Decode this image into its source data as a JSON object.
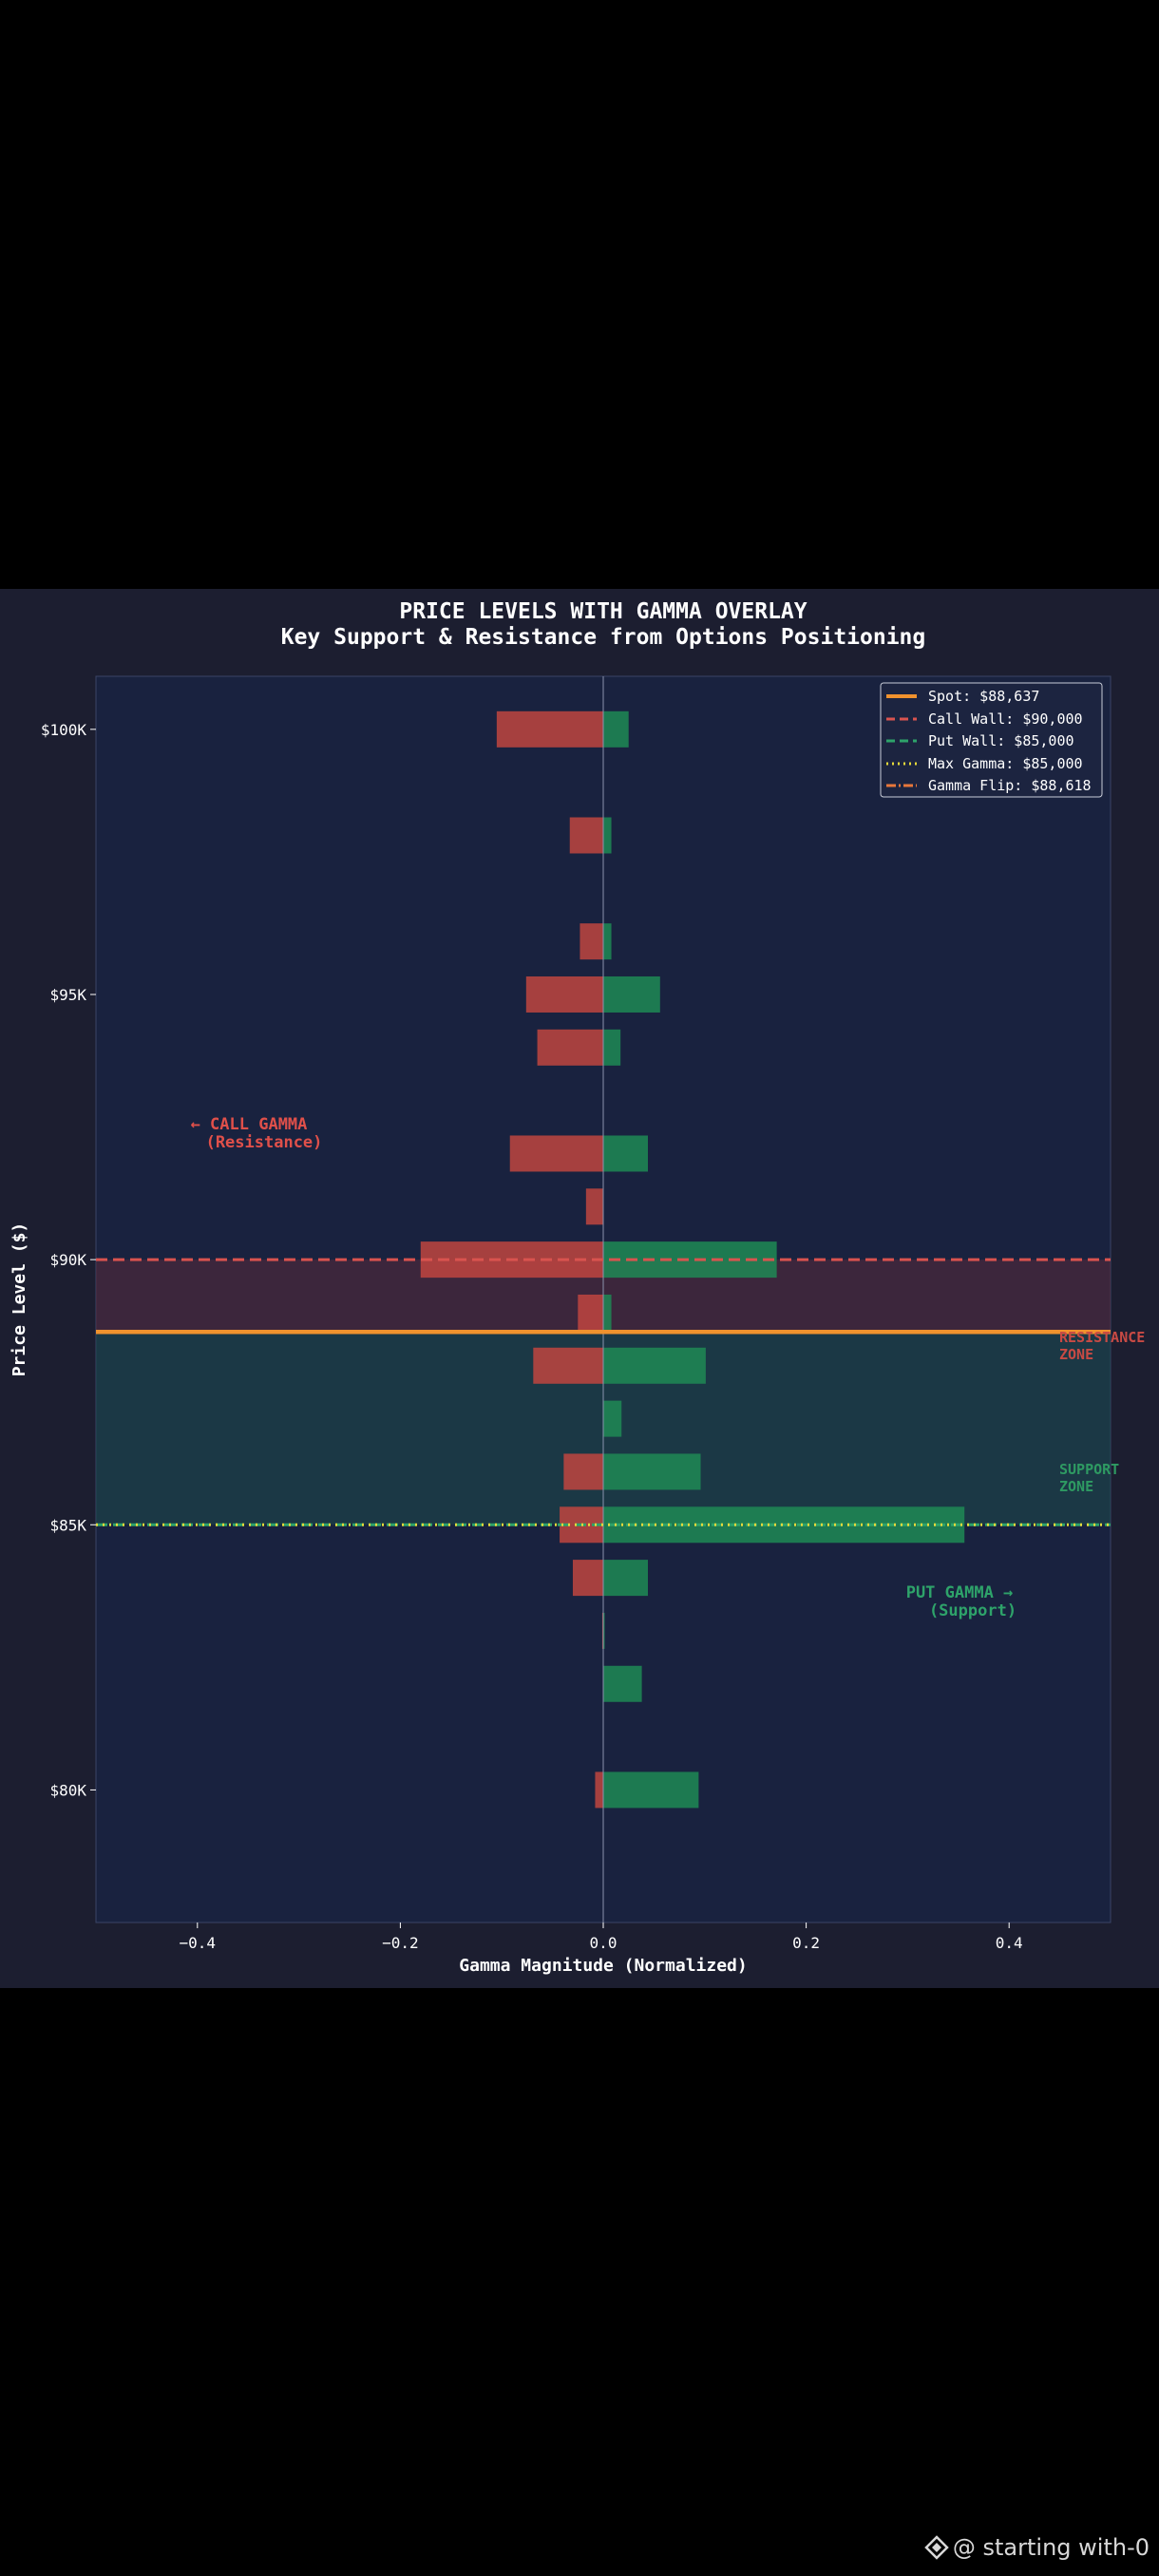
{
  "chart_data": {
    "type": "bar",
    "orientation": "horizontal",
    "title": "PRICE LEVELS WITH GAMMA OVERLAY",
    "subtitle": "Key Support & Resistance from Options Positioning",
    "xlabel": "Gamma Magnitude (Normalized)",
    "ylabel": "Price Level ($)",
    "xlim": [
      -0.5,
      0.5
    ],
    "ylim": [
      77500,
      101000
    ],
    "xticks": [
      -0.4,
      -0.2,
      0.0,
      0.2,
      0.4
    ],
    "xtick_labels": [
      "−0.4",
      "−0.2",
      "0.0",
      "0.2",
      "0.4"
    ],
    "yticks": [
      80000,
      85000,
      90000,
      95000,
      100000
    ],
    "ytick_labels": [
      "$80K",
      "$85K",
      "$90K",
      "$95K",
      "$100K"
    ],
    "price_levels": [
      100000,
      98000,
      96000,
      95000,
      94000,
      92000,
      91000,
      90000,
      89000,
      88000,
      87000,
      86000,
      85000,
      84000,
      83000,
      82000,
      80000
    ],
    "series": [
      {
        "name": "Call Gamma",
        "color": "#c0453f",
        "values": [
          -0.105,
          -0.033,
          -0.023,
          -0.076,
          -0.065,
          -0.092,
          -0.017,
          -0.18,
          -0.025,
          -0.069,
          0,
          -0.039,
          -0.043,
          -0.03,
          -0.001,
          0,
          -0.008
        ]
      },
      {
        "name": "Put Gamma",
        "color": "#1f8a55",
        "values": [
          0.025,
          0.008,
          0.008,
          0.056,
          0.017,
          0.044,
          0,
          0.171,
          0.008,
          0.101,
          0.018,
          0.096,
          0.356,
          0.044,
          0.001,
          0.038,
          0.094
        ]
      }
    ],
    "reference_lines": [
      {
        "label": "Spot: $88,637",
        "value": 88637,
        "color": "#f0922e",
        "style": "solid"
      },
      {
        "label": "Call Wall: $90,000",
        "value": 90000,
        "color": "#d9534f",
        "style": "dashed"
      },
      {
        "label": "Put Wall: $85,000",
        "value": 85000,
        "color": "#2ea36a",
        "style": "dashed"
      },
      {
        "label": "Max Gamma: $85,000",
        "value": 85000,
        "color": "#e6d93a",
        "style": "dotted"
      },
      {
        "label": "Gamma Flip: $88,618",
        "value": 88618,
        "color": "#e8773a",
        "style": "dashdot"
      }
    ],
    "zones": [
      {
        "label_line1": "RESISTANCE",
        "label_line2": "ZONE",
        "from": 88637,
        "to": 90000,
        "color": "#5a2a3a"
      },
      {
        "label_line1": "SUPPORT",
        "label_line2": "ZONE",
        "from": 85000,
        "to": 88637,
        "color": "#1e4a4a"
      }
    ],
    "annotations": {
      "call_line1": "← CALL GAMMA",
      "call_line2": "(Resistance)",
      "put_line1": "PUT GAMMA →",
      "put_line2": "(Support)"
    },
    "legend_position": "top-right"
  },
  "watermark": {
    "text": "@ starting with-0"
  }
}
